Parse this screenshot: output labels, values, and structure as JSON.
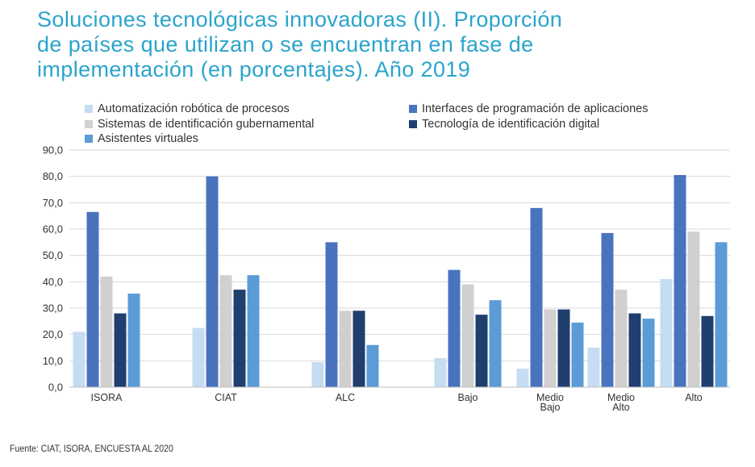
{
  "title_lines": [
    "Soluciones tecnológicas innovadoras (II). Proporción",
    "de países que utilizan o se encuentran en fase de",
    "implementación (en porcentajes). Año 2019"
  ],
  "source": "Fuente: CIAT, ISORA, ENCUESTA AL 2020",
  "colors": {
    "title": "#2aa4cc",
    "series": [
      "#c5dcf2",
      "#4a73be",
      "#d0d0d0",
      "#203f6e",
      "#5b9bd6"
    ]
  },
  "chart_data": {
    "type": "bar",
    "categories": [
      "ISORA",
      "CIAT",
      "ALC",
      "Bajo",
      "Medio\nBajo",
      "Medio\nAlto",
      "Alto"
    ],
    "series": [
      {
        "name": "Automatización robótica de procesos",
        "values": [
          21.0,
          22.5,
          9.5,
          11.0,
          7.0,
          15.0,
          41.0
        ]
      },
      {
        "name": "Interfaces de programación de aplicaciones",
        "values": [
          66.5,
          80.0,
          55.0,
          44.5,
          68.0,
          58.5,
          80.5
        ]
      },
      {
        "name": "Sistemas de identificación gubernamental",
        "values": [
          42.0,
          42.5,
          29.0,
          39.0,
          29.5,
          37.0,
          59.0
        ]
      },
      {
        "name": "Tecnología de identificación digital",
        "values": [
          28.0,
          37.0,
          29.0,
          27.5,
          29.5,
          28.0,
          27.0
        ]
      },
      {
        "name": "Asistentes virtuales",
        "values": [
          35.5,
          42.5,
          16.0,
          33.0,
          24.5,
          26.0,
          55.0
        ]
      }
    ],
    "ylim": [
      0,
      90
    ],
    "yticks": [
      "0,0",
      "10,0",
      "20,0",
      "30,0",
      "40,0",
      "50,0",
      "60,0",
      "70,0",
      "80,0",
      "90,0"
    ],
    "grid": true,
    "legend_position": "top"
  }
}
